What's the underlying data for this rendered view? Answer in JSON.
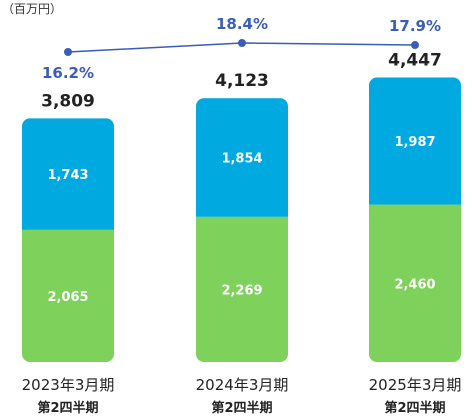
{
  "unit_label": "（百万円）",
  "colors": {
    "top_segment": "#00a9e0",
    "bottom_segment": "#7ed15b",
    "ratio_line": "#3b5cb8",
    "text": "#222222"
  },
  "chart_data": {
    "type": "bar",
    "stacked": true,
    "categories": [
      [
        "2023年3月期",
        "第2四半期"
      ],
      [
        "2024年3月期",
        "第2四半期"
      ],
      [
        "2025年3月期",
        "第2四半期"
      ]
    ],
    "series": [
      {
        "values": [
          2065,
          2269,
          2460
        ]
      },
      {
        "values": [
          1743,
          1854,
          1987
        ]
      }
    ],
    "totals": [
      "3,809",
      "4,123",
      "4,447"
    ],
    "ratio_line": {
      "type": "line",
      "labels": [
        "16.2%",
        "18.4%",
        "17.9%"
      ],
      "values": [
        16.2,
        18.4,
        17.9
      ]
    },
    "value_labels": {
      "bottom": [
        "2,065",
        "2,269",
        "2,460"
      ],
      "top": [
        "1,743",
        "1,854",
        "1,987"
      ]
    },
    "grid": false
  }
}
